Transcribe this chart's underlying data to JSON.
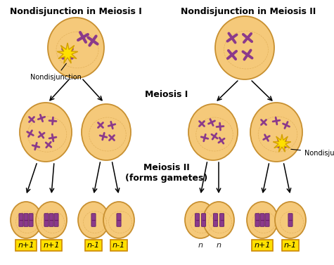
{
  "title_left": "Nondisjunction in Meiosis I",
  "title_right": "Nondisjunction in Meiosis II",
  "label_meiosis1": "Meiosis I",
  "label_meiosis2": "Meiosis II\n(forms gametes)",
  "label_nondisjunction": "Nondisjunction",
  "bg_color": "#ffffff",
  "cell_color": "#F5C97A",
  "cell_edge_color": "#C89030",
  "chrom_color": "#8B3A8B",
  "chrom_color2": "#9B4B9B",
  "star_color": "#FFE000",
  "star_edge_color": "#D4A000",
  "label_box_color": "#FFE000",
  "label_box_edge": "#CC8800",
  "title_fontsize": 9,
  "label_fontsize": 8,
  "small_label_fontsize": 7
}
